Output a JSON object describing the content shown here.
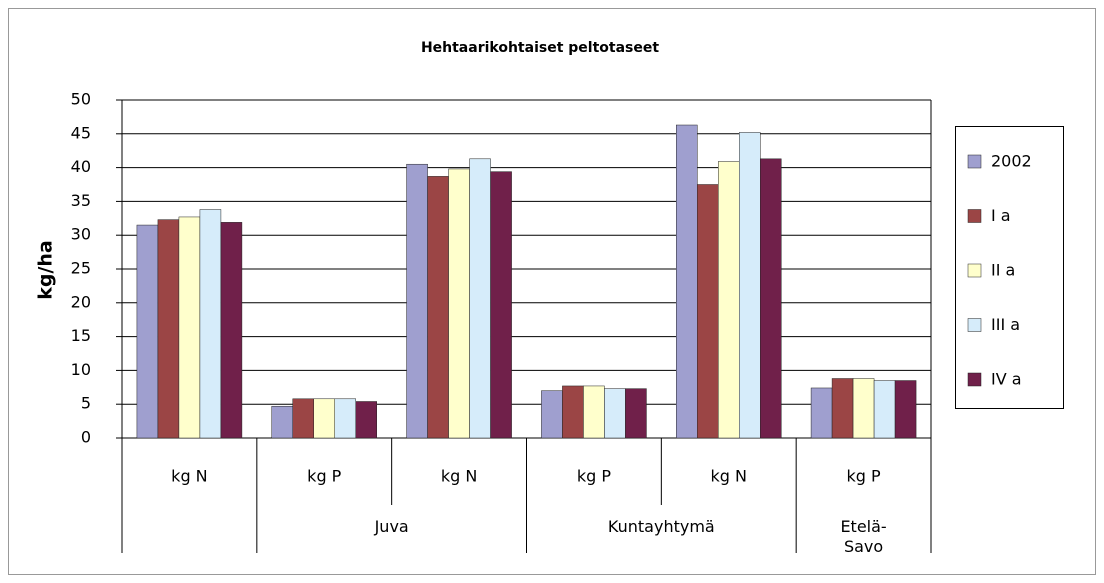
{
  "chart_data": {
    "type": "bar",
    "title": "Hehtaarikohtaiset peltotaseet",
    "ylabel": "kg/ha",
    "categories": [
      "kg N",
      "kg P",
      "kg N",
      "kg P",
      "kg N",
      "kg P"
    ],
    "category_groups": [
      null,
      "Juva",
      "Juva",
      "Kuntayhtymä",
      "Kuntayhtymä",
      "Etelä-Savo"
    ],
    "series": [
      {
        "name": "2002",
        "color": "#9f9fcf",
        "values": [
          31.5,
          4.7,
          40.5,
          7.0,
          46.3,
          7.4
        ]
      },
      {
        "name": "I a",
        "color": "#9b4545",
        "values": [
          32.3,
          5.8,
          38.7,
          7.7,
          37.5,
          8.8
        ]
      },
      {
        "name": "II a",
        "color": "#ffffcc",
        "values": [
          32.7,
          5.8,
          39.8,
          7.7,
          40.9,
          8.8
        ]
      },
      {
        "name": "III a",
        "color": "#d6ecfa",
        "values": [
          33.8,
          5.8,
          41.3,
          7.3,
          45.2,
          8.5
        ]
      },
      {
        "name": "IV a",
        "color": "#70204a",
        "values": [
          31.9,
          5.4,
          39.4,
          7.3,
          41.3,
          8.5
        ]
      }
    ],
    "ylim": [
      0,
      50
    ],
    "yticks": [
      0,
      5,
      10,
      15,
      20,
      25,
      30,
      35,
      40,
      45,
      50
    ],
    "grid": true,
    "legend": "right"
  }
}
